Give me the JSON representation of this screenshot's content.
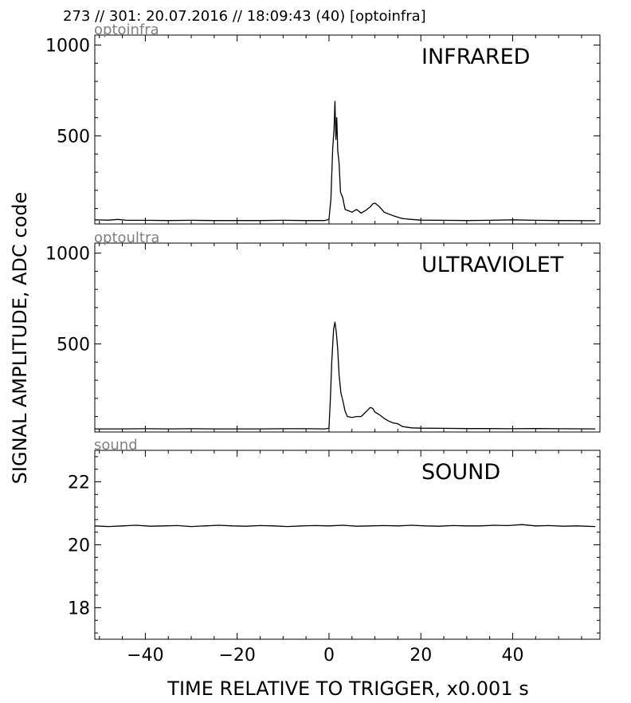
{
  "header": "273 // 301:   20.07.2016 // 18:09:43 (40)  [optoinfra]",
  "chart_data": {
    "type": "line",
    "xlabel": "TIME RELATIVE TO TRIGGER,   x0.001 s",
    "ylabel": "SIGNAL AMPLITUDE,  ADC code",
    "xlim": [
      -51,
      59
    ],
    "xticks": [
      -40,
      -20,
      0,
      20,
      40
    ],
    "xtick_labels": [
      "−40",
      "−20",
      "0",
      "20",
      "40"
    ],
    "panels": [
      {
        "tag": "optoinfra",
        "title": "INFRARED",
        "ylim": [
          15,
          1055
        ],
        "yticks": [
          500,
          1000
        ],
        "ytick_labels": [
          "500",
          "1000"
        ],
        "series": [
          {
            "x": [
              -51,
              -48,
              -46,
              -44,
              -40,
              -35,
              -30,
              -25,
              -20,
              -15,
              -10,
              -5,
              -1,
              0,
              0.4,
              0.8,
              1.1,
              1.3,
              1.5,
              1.7,
              1.9,
              2.2,
              2.5,
              3,
              3.5,
              4,
              5,
              6,
              7,
              8,
              9,
              9.5,
              10,
              11,
              12,
              13,
              14,
              16,
              18,
              20,
              25,
              30,
              35,
              40,
              45,
              50,
              58
            ],
            "y": [
              38,
              36,
              40,
              35,
              35,
              34,
              35,
              34,
              34,
              34,
              35,
              34,
              34,
              40,
              150,
              430,
              540,
              690,
              480,
              600,
              420,
              350,
              190,
              160,
              95,
              90,
              80,
              95,
              75,
              90,
              110,
              125,
              130,
              110,
              80,
              70,
              60,
              45,
              40,
              36,
              35,
              34,
              35,
              38,
              35,
              34,
              33
            ]
          }
        ]
      },
      {
        "tag": "optoultra",
        "title": "ULTRAVIOLET",
        "ylim": [
          15,
          1055
        ],
        "yticks": [
          500,
          1000
        ],
        "ytick_labels": [
          "500",
          "1000"
        ],
        "series": [
          {
            "x": [
              -51,
              -45,
              -40,
              -35,
              -30,
              -25,
              -20,
              -15,
              -10,
              -5,
              -1,
              0,
              0.3,
              0.6,
              1.0,
              1.3,
              1.6,
              1.9,
              2.2,
              2.6,
              3,
              3.5,
              4,
              5,
              6,
              7,
              8,
              9,
              9.5,
              10,
              11,
              12,
              13,
              14,
              15,
              16,
              18,
              20,
              25,
              30,
              35,
              40,
              45,
              50,
              58
            ],
            "y": [
              32,
              32,
              33,
              32,
              33,
              32,
              32,
              32,
              33,
              33,
              32,
              35,
              200,
              400,
              580,
              620,
              560,
              470,
              330,
              230,
              190,
              130,
              100,
              95,
              100,
              100,
              125,
              150,
              145,
              125,
              110,
              90,
              75,
              65,
              60,
              45,
              38,
              36,
              35,
              34,
              34,
              33,
              34,
              33,
              32
            ]
          }
        ]
      },
      {
        "tag": "sound",
        "title": "SOUND",
        "ylim": [
          17.0,
          23.0
        ],
        "yticks": [
          18,
          20,
          22
        ],
        "ytick_labels": [
          "18",
          "20",
          "22"
        ],
        "series": [
          {
            "x": [
              -51,
              -48,
              -45,
              -42,
              -39,
              -36,
              -33,
              -30,
              -27,
              -24,
              -21,
              -18,
              -15,
              -12,
              -9,
              -6,
              -3,
              0,
              3,
              6,
              9,
              12,
              15,
              18,
              21,
              24,
              27,
              30,
              33,
              36,
              39,
              42,
              45,
              48,
              51,
              54,
              58
            ],
            "y": [
              20.6,
              20.58,
              20.6,
              20.62,
              20.59,
              20.6,
              20.61,
              20.58,
              20.6,
              20.62,
              20.6,
              20.59,
              20.61,
              20.6,
              20.58,
              20.6,
              20.61,
              20.6,
              20.62,
              20.59,
              20.6,
              20.61,
              20.6,
              20.62,
              20.6,
              20.59,
              20.61,
              20.6,
              20.6,
              20.62,
              20.61,
              20.64,
              20.6,
              20.61,
              20.59,
              20.6,
              20.58
            ]
          }
        ]
      }
    ]
  }
}
